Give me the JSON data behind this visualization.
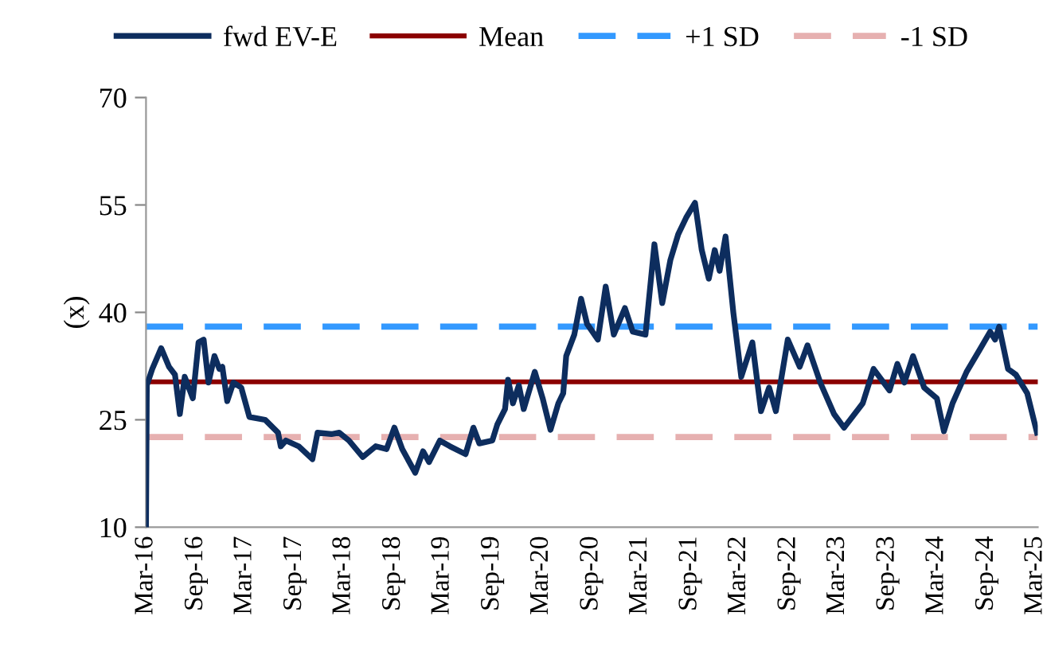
{
  "chart_data": {
    "type": "line",
    "ylabel": "(x)",
    "x": [
      "2016-03-01",
      "2016-03-04",
      "2016-03-24",
      "2016-04-26",
      "2016-05-25",
      "2016-06-16",
      "2016-07-04",
      "2016-07-22",
      "2016-08-21",
      "2016-09-11",
      "2016-09-30",
      "2016-10-18",
      "2016-11-09",
      "2016-11-27",
      "2016-12-08",
      "2016-12-26",
      "2017-01-18",
      "2017-02-16",
      "2017-03-18",
      "2017-05-15",
      "2017-07-02",
      "2017-07-12",
      "2017-07-31",
      "2017-09-16",
      "2017-11-06",
      "2017-11-25",
      "2018-01-15",
      "2018-02-13",
      "2018-03-21",
      "2018-05-11",
      "2018-06-28",
      "2018-08-07",
      "2018-09-05",
      "2018-10-04",
      "2018-11-21",
      "2018-12-20",
      "2019-01-11",
      "2019-02-20",
      "2019-03-29",
      "2019-05-26",
      "2019-06-24",
      "2019-07-16",
      "2019-09-02",
      "2019-09-20",
      "2019-10-19",
      "2019-10-30",
      "2019-11-17",
      "2019-12-09",
      "2019-12-27",
      "2020-02-06",
      "2020-03-06",
      "2020-04-04",
      "2020-05-03",
      "2020-05-21",
      "2020-06-01",
      "2020-07-01",
      "2020-07-26",
      "2020-08-17",
      "2020-09-26",
      "2020-10-25",
      "2020-11-24",
      "2021-01-04",
      "2021-02-02",
      "2021-03-21",
      "2021-04-23",
      "2021-05-22",
      "2021-06-21",
      "2021-07-20",
      "2021-08-18",
      "2021-09-20",
      "2021-10-15",
      "2021-11-10",
      "2021-12-02",
      "2021-12-20",
      "2022-01-11",
      "2022-02-09",
      "2022-03-10",
      "2022-04-20",
      "2022-05-22",
      "2022-06-21",
      "2022-07-16",
      "2022-08-29",
      "2022-10-12",
      "2022-11-10",
      "2022-12-27",
      "2023-02-16",
      "2023-03-25",
      "2023-06-02",
      "2023-07-12",
      "2023-09-09",
      "2023-10-08",
      "2023-11-03",
      "2023-12-05",
      "2024-01-15",
      "2024-03-02",
      "2024-03-28",
      "2024-04-29",
      "2024-06-20",
      "2024-08-06",
      "2024-09-15",
      "2024-10-03",
      "2024-10-18",
      "2024-11-20",
      "2024-12-19",
      "2025-01-30",
      "2025-03-07"
    ],
    "series": [
      {
        "name": "fwd EV-E",
        "color": "#0d2d5e",
        "values": [
          10,
          29.8,
          32.1,
          35.0,
          32.4,
          31.3,
          25.8,
          31.0,
          28.0,
          35.8,
          36.2,
          30.2,
          33.9,
          32.1,
          32.4,
          27.6,
          30.2,
          29.5,
          25.4,
          25.0,
          23.2,
          21.3,
          22.1,
          21.3,
          19.5,
          23.2,
          23.0,
          23.2,
          22.1,
          19.8,
          21.3,
          20.9,
          23.9,
          20.9,
          17.6,
          20.6,
          19.1,
          22.1,
          21.3,
          20.2,
          23.9,
          21.7,
          22.1,
          24.3,
          26.5,
          30.6,
          27.3,
          29.8,
          26.5,
          31.7,
          28.0,
          23.6,
          27.3,
          28.7,
          33.9,
          36.9,
          41.9,
          38.4,
          36.2,
          43.6,
          36.9,
          40.6,
          37.3,
          36.9,
          49.5,
          41.3,
          47.3,
          50.9,
          53.2,
          55.3,
          48.7,
          44.7,
          48.7,
          45.8,
          50.6,
          39.9,
          31.0,
          35.8,
          26.2,
          29.5,
          26.2,
          36.2,
          32.4,
          35.4,
          30.2,
          25.8,
          23.9,
          27.3,
          32.1,
          29.1,
          32.8,
          30.2,
          33.9,
          29.5,
          28.0,
          23.4,
          27.3,
          31.7,
          34.7,
          37.3,
          36.2,
          38.0,
          32.1,
          31.3,
          28.7,
          23.2
        ]
      }
    ],
    "ref_lines": [
      {
        "axis": "y",
        "value": 30.3,
        "label": "Mean",
        "color": "#8b0000",
        "line_style": "solid"
      },
      {
        "axis": "y",
        "value": 38.0,
        "label": "+1 SD",
        "color": "#3399ff",
        "line_style": "dashed"
      },
      {
        "axis": "y",
        "value": 22.6,
        "label": "-1 SD",
        "color": "#e6b0b0",
        "line_style": "dashed"
      }
    ],
    "xlim": [
      "2016-03-01",
      "2025-03-10"
    ],
    "xticks": [
      {
        "value": "2016-03-01",
        "label": "Mar-16"
      },
      {
        "value": "2016-09-01",
        "label": "Sep-16"
      },
      {
        "value": "2017-03-01",
        "label": "Mar-17"
      },
      {
        "value": "2017-09-01",
        "label": "Sep-17"
      },
      {
        "value": "2018-03-01",
        "label": "Mar-18"
      },
      {
        "value": "2018-09-01",
        "label": "Sep-18"
      },
      {
        "value": "2019-03-01",
        "label": "Mar-19"
      },
      {
        "value": "2019-09-01",
        "label": "Sep-19"
      },
      {
        "value": "2020-03-01",
        "label": "Mar-20"
      },
      {
        "value": "2020-09-01",
        "label": "Sep-20"
      },
      {
        "value": "2021-03-01",
        "label": "Mar-21"
      },
      {
        "value": "2021-09-01",
        "label": "Sep-21"
      },
      {
        "value": "2022-03-01",
        "label": "Mar-22"
      },
      {
        "value": "2022-09-01",
        "label": "Sep-22"
      },
      {
        "value": "2023-03-01",
        "label": "Mar-23"
      },
      {
        "value": "2023-09-01",
        "label": "Sep-23"
      },
      {
        "value": "2024-03-01",
        "label": "Mar-24"
      },
      {
        "value": "2024-09-01",
        "label": "Sep-24"
      },
      {
        "value": "2025-03-01",
        "label": "Mar-25"
      }
    ],
    "ylim": [
      10,
      70
    ],
    "yticks": [
      10,
      25,
      40,
      55,
      70
    ],
    "grid": false,
    "legend": "top",
    "marker": "none",
    "line_style": "solid"
  }
}
